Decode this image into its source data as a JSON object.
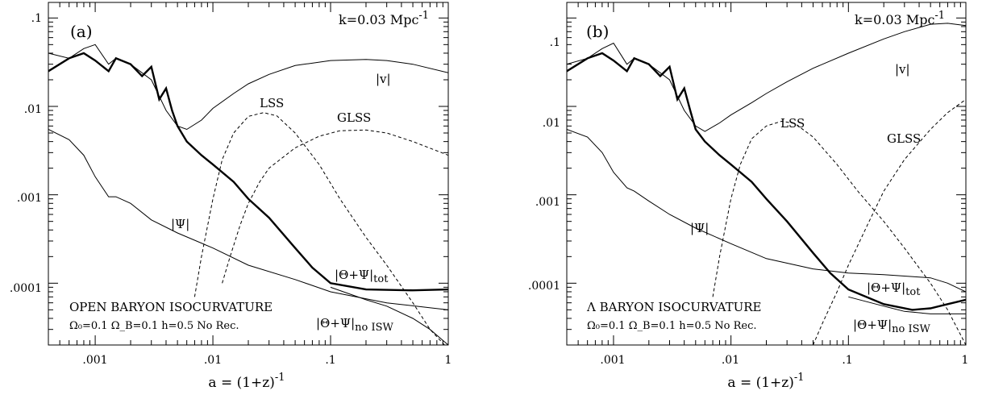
{
  "chart_data": [
    {
      "type": "line",
      "panel": "(a)",
      "k_label": "k=0.03 Mpc",
      "k_exp": "-1",
      "xlabel_main": "a  =  (1+z)",
      "xlabel_exp": "-1",
      "xscale": "log",
      "yscale": "log",
      "xlim": [
        0.0004,
        1
      ],
      "ylim": [
        2e-05,
        0.15
      ],
      "xticks": [
        ".001",
        ".01",
        ".1",
        "1"
      ],
      "yticks": [
        ".1",
        ".01",
        ".001",
        ".0001"
      ],
      "scenario": "OPEN BARYON ISOCURVATURE",
      "params": "Ω₀=0.1  Ω_B=0.1  h=0.5  No Rec.",
      "labels": {
        "v": "|v|",
        "psi": "|Ψ|",
        "lss": "LSS",
        "glss": "GLSS",
        "tot_main": "|Θ+Ψ|",
        "tot_sub": "tot",
        "noisw_main": "|Θ+Ψ|",
        "noisw_sub": "no ISW"
      },
      "series": [
        {
          "name": "|Θ+Ψ|tot",
          "style": "thick",
          "x": [
            0.0004,
            0.0006,
            0.0008,
            0.001,
            0.0013,
            0.0015,
            0.002,
            0.0025,
            0.003,
            0.0035,
            0.004,
            0.0045,
            0.005,
            0.006,
            0.008,
            0.01,
            0.015,
            0.02,
            0.03,
            0.05,
            0.07,
            0.1,
            0.2,
            0.5,
            1
          ],
          "y": [
            0.025,
            0.035,
            0.04,
            0.033,
            0.025,
            0.035,
            0.03,
            0.022,
            0.028,
            0.012,
            0.016,
            0.009,
            0.006,
            0.004,
            0.0028,
            0.0022,
            0.0014,
            0.0009,
            0.00055,
            0.00025,
            0.00015,
            0.0001,
            8.5e-05,
            8.3e-05,
            8.5e-05
          ]
        },
        {
          "name": "|v|",
          "style": "thin",
          "x": [
            0.0004,
            0.0006,
            0.0008,
            0.001,
            0.0013,
            0.0015,
            0.002,
            0.003,
            0.004,
            0.005,
            0.006,
            0.008,
            0.01,
            0.015,
            0.02,
            0.03,
            0.05,
            0.1,
            0.2,
            0.3,
            0.5,
            1
          ],
          "y": [
            0.04,
            0.035,
            0.045,
            0.05,
            0.03,
            0.035,
            0.03,
            0.02,
            0.009,
            0.006,
            0.0055,
            0.007,
            0.0095,
            0.014,
            0.018,
            0.023,
            0.029,
            0.033,
            0.034,
            0.033,
            0.03,
            0.024
          ]
        },
        {
          "name": "|Ψ|",
          "style": "thin",
          "x": [
            0.0004,
            0.0006,
            0.0008,
            0.001,
            0.0013,
            0.0015,
            0.002,
            0.003,
            0.005,
            0.01,
            0.02,
            0.05,
            0.1,
            0.3,
            1
          ],
          "y": [
            0.0055,
            0.0042,
            0.0028,
            0.0016,
            0.00095,
            0.00095,
            0.0008,
            0.00052,
            0.00037,
            0.00025,
            0.00016,
            0.00011,
            8e-05,
            6e-05,
            5e-05
          ]
        },
        {
          "name": "|Θ+Ψ|no ISW",
          "style": "thin",
          "x": [
            0.1,
            0.2,
            0.3,
            0.5,
            0.7,
            1
          ],
          "y": [
            9e-05,
            6.5e-05,
            5.5e-05,
            4e-05,
            3e-05,
            2e-05
          ]
        },
        {
          "name": "LSS",
          "style": "dashed",
          "x": [
            0.007,
            0.008,
            0.01,
            0.012,
            0.015,
            0.02,
            0.027,
            0.035,
            0.05,
            0.08,
            0.12,
            0.2,
            0.3,
            0.5,
            0.7,
            1
          ],
          "y": [
            7e-05,
            0.0002,
            0.0009,
            0.0025,
            0.005,
            0.0077,
            0.0085,
            0.0078,
            0.005,
            0.0022,
            0.0009,
            0.00033,
            0.00016,
            6e-05,
            3e-05,
            1.8e-05
          ]
        },
        {
          "name": "GLSS",
          "style": "dashed",
          "x": [
            0.012,
            0.014,
            0.017,
            0.02,
            0.025,
            0.03,
            0.05,
            0.08,
            0.12,
            0.2,
            0.3,
            0.5,
            1
          ],
          "y": [
            0.0001,
            0.0002,
            0.00045,
            0.0008,
            0.0014,
            0.002,
            0.0034,
            0.0046,
            0.0053,
            0.0054,
            0.005,
            0.004,
            0.0028
          ]
        }
      ]
    },
    {
      "type": "line",
      "panel": "(b)",
      "k_label": "k=0.03 Mpc",
      "k_exp": "-1",
      "xlabel_main": "a  =  (1+z)",
      "xlabel_exp": "-1",
      "xscale": "log",
      "yscale": "log",
      "xlim": [
        0.0004,
        1
      ],
      "ylim": [
        2e-05,
        0.15
      ],
      "xticks": [
        ".001",
        ".01",
        ".1",
        "1"
      ],
      "yticks": [
        ".1",
        ".01",
        ".001",
        ".0001"
      ],
      "scenario": "Λ BARYON ISOCURVATURE",
      "params": "Ω₀=0.1  Ω_B=0.1  h=0.5  No Rec.",
      "labels": {
        "v": "|v|",
        "psi": "|Ψ|",
        "lss": "LSS",
        "glss": "GLSS",
        "tot_main": "|Θ+Ψ|",
        "tot_sub": "tot",
        "noisw_main": "|Θ+Ψ|",
        "noisw_sub": "no ISW"
      },
      "series": [
        {
          "name": "|Θ+Ψ|tot",
          "style": "thick",
          "x": [
            0.0004,
            0.0006,
            0.0008,
            0.001,
            0.0013,
            0.0015,
            0.002,
            0.0025,
            0.003,
            0.0035,
            0.004,
            0.0045,
            0.005,
            0.006,
            0.008,
            0.01,
            0.015,
            0.02,
            0.03,
            0.05,
            0.07,
            0.1,
            0.2,
            0.35,
            0.5,
            0.7,
            1
          ],
          "y": [
            0.025,
            0.035,
            0.04,
            0.033,
            0.025,
            0.035,
            0.03,
            0.022,
            0.028,
            0.012,
            0.016,
            0.009,
            0.0055,
            0.004,
            0.0028,
            0.0022,
            0.0014,
            0.0009,
            0.0005,
            0.00022,
            0.00013,
            8.5e-05,
            5.8e-05,
            5e-05,
            5.2e-05,
            5.8e-05,
            6.5e-05
          ]
        },
        {
          "name": "|v|",
          "style": "thin",
          "x": [
            0.0004,
            0.0006,
            0.0008,
            0.001,
            0.0013,
            0.0015,
            0.002,
            0.003,
            0.004,
            0.005,
            0.006,
            0.008,
            0.01,
            0.015,
            0.02,
            0.03,
            0.05,
            0.1,
            0.2,
            0.3,
            0.5,
            0.7,
            1
          ],
          "y": [
            0.03,
            0.035,
            0.045,
            0.052,
            0.03,
            0.035,
            0.03,
            0.02,
            0.009,
            0.006,
            0.0052,
            0.0065,
            0.008,
            0.011,
            0.014,
            0.019,
            0.027,
            0.04,
            0.058,
            0.07,
            0.085,
            0.087,
            0.082
          ]
        },
        {
          "name": "|Ψ|",
          "style": "thin",
          "x": [
            0.0004,
            0.0006,
            0.0008,
            0.001,
            0.0013,
            0.0015,
            0.002,
            0.003,
            0.005,
            0.01,
            0.02,
            0.05,
            0.1,
            0.2,
            0.5,
            0.7,
            1
          ],
          "y": [
            0.0055,
            0.0045,
            0.003,
            0.0018,
            0.0012,
            0.0011,
            0.00085,
            0.0006,
            0.00042,
            0.00028,
            0.00019,
            0.000145,
            0.00013,
            0.000125,
            0.000115,
            0.0001,
            8e-05
          ]
        },
        {
          "name": "|Θ+Ψ|no ISW",
          "style": "thin",
          "x": [
            0.1,
            0.2,
            0.3,
            0.5,
            1
          ],
          "y": [
            7e-05,
            5.5e-05,
            4.8e-05,
            4.5e-05,
            4.5e-05
          ]
        },
        {
          "name": "LSS",
          "style": "dashed",
          "x": [
            0.007,
            0.008,
            0.01,
            0.012,
            0.015,
            0.02,
            0.027,
            0.035,
            0.05,
            0.08,
            0.12,
            0.2,
            0.3,
            0.5,
            0.7,
            1
          ],
          "y": [
            7e-05,
            0.0002,
            0.0009,
            0.0022,
            0.0043,
            0.006,
            0.0068,
            0.0064,
            0.0045,
            0.0022,
            0.0011,
            0.0005,
            0.00025,
            0.0001,
            5e-05,
            2e-05
          ]
        },
        {
          "name": "GLSS",
          "style": "dashed",
          "x": [
            0.05,
            0.06,
            0.08,
            0.1,
            0.15,
            0.2,
            0.3,
            0.5,
            0.7,
            1
          ],
          "y": [
            2e-05,
            3.5e-05,
            8e-05,
            0.00016,
            0.0005,
            0.0011,
            0.0025,
            0.0055,
            0.0085,
            0.012
          ]
        }
      ]
    }
  ]
}
